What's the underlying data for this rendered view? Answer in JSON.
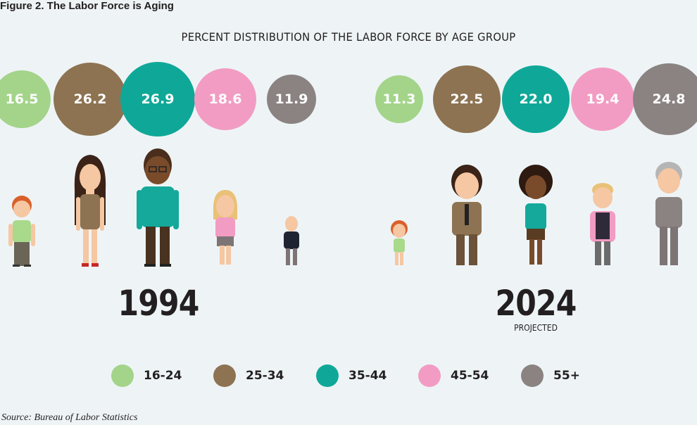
{
  "figure_title": "Figure 2. The Labor Force is Aging",
  "source": "Source: Bureau of Labor Statistics",
  "chart_data": {
    "type": "bubble",
    "title": "PERCENT DISTRIBUTION OF THE LABOR FORCE BY AGE GROUP",
    "categories": [
      "16-24",
      "25-34",
      "35-44",
      "45-54",
      "55+"
    ],
    "colors": [
      "#a3d48a",
      "#8d7352",
      "#0fa898",
      "#f29cc3",
      "#8a8382"
    ],
    "series": [
      {
        "name": "1994",
        "note": "",
        "values": [
          "16.5",
          "26.2",
          "26.9",
          "18.6",
          "11.9"
        ]
      },
      {
        "name": "2024",
        "note": "PROJECTED",
        "values": [
          "11.3",
          "22.5",
          "22.0",
          "19.4",
          "24.8"
        ]
      }
    ]
  }
}
